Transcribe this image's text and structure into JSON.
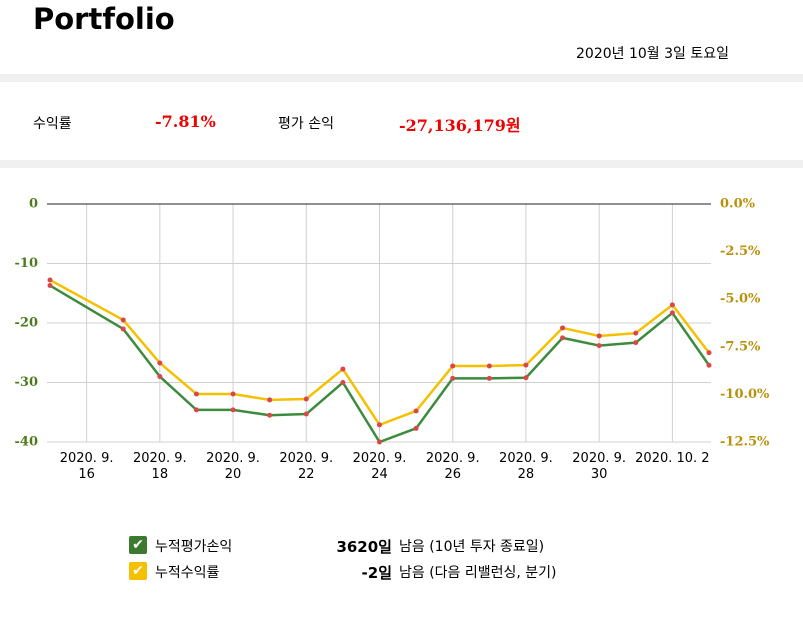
{
  "header": {
    "title": "Portfolio",
    "date": "2020년 10월 3일 토요일"
  },
  "summary": {
    "return_label": "수익률",
    "return_value": "-7.81%",
    "pnl_label": "평가 손익",
    "pnl_value": "-27,136,179원"
  },
  "chart_data": {
    "type": "line",
    "x": [
      "2020-09-15",
      "2020-09-17",
      "2020-09-18",
      "2020-09-19",
      "2020-09-20",
      "2020-09-21",
      "2020-09-22",
      "2020-09-23",
      "2020-09-24",
      "2020-09-25",
      "2020-09-26",
      "2020-09-27",
      "2020-09-28",
      "2020-09-29",
      "2020-09-30",
      "2020-10-01",
      "2020-10-02",
      "2020-10-03"
    ],
    "xlim": [
      "2020-09-15",
      "2020-10-03"
    ],
    "xticks": [
      {
        "value": "2020-09-16",
        "label": "2020. 9.\n16"
      },
      {
        "value": "2020-09-18",
        "label": "2020. 9.\n18"
      },
      {
        "value": "2020-09-20",
        "label": "2020. 9.\n20"
      },
      {
        "value": "2020-09-22",
        "label": "2020. 9.\n22"
      },
      {
        "value": "2020-09-24",
        "label": "2020. 9.\n24"
      },
      {
        "value": "2020-09-26",
        "label": "2020. 9.\n26"
      },
      {
        "value": "2020-09-28",
        "label": "2020. 9.\n28"
      },
      {
        "value": "2020-09-30",
        "label": "2020. 9.\n30"
      },
      {
        "value": "2020-10-02",
        "label": "2020. 10. 2"
      }
    ],
    "ylim": [
      -40,
      0
    ],
    "yticks": [
      0,
      -10,
      -20,
      -30,
      -40
    ],
    "y2lim": [
      -12.5,
      0
    ],
    "y2ticks": [
      {
        "value": 0,
        "label": "0.0%"
      },
      {
        "value": -2.5,
        "label": "-2.5%"
      },
      {
        "value": -5,
        "label": "-5.0%"
      },
      {
        "value": -7.5,
        "label": "-7.5%"
      },
      {
        "value": -10,
        "label": "-10.0%"
      },
      {
        "value": -12.5,
        "label": "-12.5%"
      }
    ],
    "grid": true,
    "marker_color": "#d94848",
    "series": [
      {
        "name": "누적평가손익",
        "color": "#3e8a3e",
        "values": [
          -13.7,
          -21,
          -29,
          -34.6,
          -34.6,
          -35.5,
          -35.3,
          -30,
          -40,
          -37.7,
          -29.3,
          -29.3,
          -29.2,
          -22.5,
          -23.8,
          -23.3,
          -18.3,
          -27.1
        ]
      },
      {
        "name": "누적수익률",
        "color": "#f5c000",
        "axis": "y2",
        "values": [
          -3.99,
          -6.09,
          -8.35,
          -9.98,
          -9.98,
          -10.29,
          -10.24,
          -8.67,
          -11.6,
          -10.87,
          -8.51,
          -8.51,
          -8.46,
          -6.51,
          -6.93,
          -6.78,
          -5.3,
          -7.81
        ]
      }
    ]
  },
  "info": [
    {
      "days": "3620일",
      "text": "남음 (10년 투자 종료일)"
    },
    {
      "days": "-2일",
      "text": "남음 (다음 리밸런싱, 분기)"
    }
  ]
}
